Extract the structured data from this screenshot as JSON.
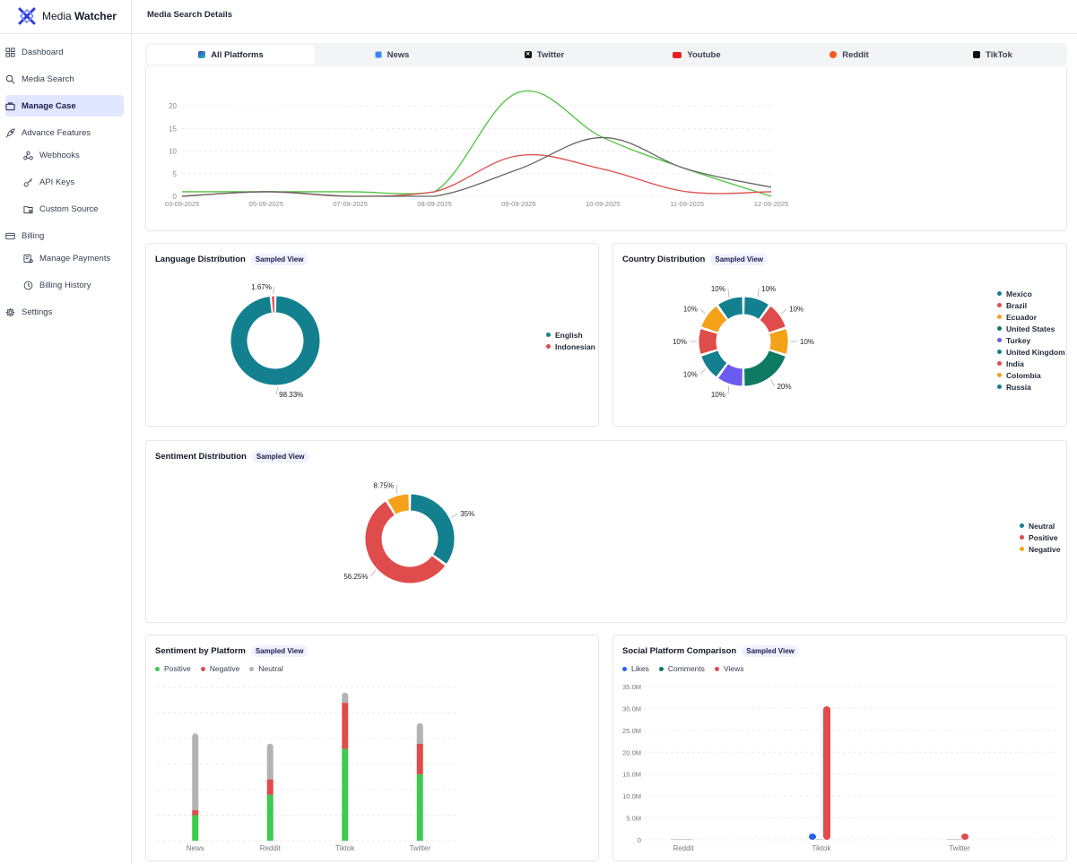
{
  "app": {
    "brand_regular": "Media ",
    "brand_bold": "Watcher"
  },
  "header": {
    "title": "Media Search Details"
  },
  "sidebar": {
    "items": [
      {
        "label": "Dashboard",
        "icon": "grid-icon"
      },
      {
        "label": "Media Search",
        "icon": "search-icon"
      },
      {
        "label": "Manage Case",
        "icon": "briefcase-icon"
      },
      {
        "label": "Advance Features",
        "icon": "rocket-icon"
      },
      {
        "label": "Webhooks",
        "icon": "webhook-icon"
      },
      {
        "label": "API Keys",
        "icon": "key-icon"
      },
      {
        "label": "Custom Source",
        "icon": "folder-icon"
      },
      {
        "label": "Billing",
        "icon": "credit-card-icon"
      },
      {
        "label": "Manage Payments",
        "icon": "payments-icon"
      },
      {
        "label": "Billing History",
        "icon": "clock-icon"
      },
      {
        "label": "Settings",
        "icon": "gear-icon"
      }
    ]
  },
  "tabs": [
    {
      "label": "All Platforms"
    },
    {
      "label": "News"
    },
    {
      "label": "Twitter"
    },
    {
      "label": "Youtube"
    },
    {
      "label": "Reddit"
    },
    {
      "label": "TikTok"
    }
  ],
  "colors": {
    "teal": "#13808f",
    "red": "#e04b4b",
    "orange": "#f4a21a",
    "purple": "#6b5cf0",
    "green": "#3ec94f",
    "gray": "#b4b4b4",
    "blue": "#2563eb",
    "dark_teal": "#0e7a62"
  },
  "timeline": {
    "chart_data": {
      "type": "line",
      "categories": [
        "03-09-2025",
        "05-09-2025",
        "07-09-2025",
        "08-09-2025",
        "09-09-2025",
        "10-09-2025",
        "11-09-2025",
        "12-09-2025"
      ],
      "y_ticks": [
        "0",
        "5",
        "10",
        "15",
        "20"
      ],
      "ylim": [
        0,
        23
      ],
      "series": [
        {
          "name": "green",
          "color": "#4cc43c",
          "values": [
            1,
            1,
            1,
            1,
            23,
            13,
            6,
            0
          ]
        },
        {
          "name": "red",
          "color": "#e04b4b",
          "values": [
            0,
            1,
            0,
            1,
            9,
            6,
            1,
            1
          ]
        },
        {
          "name": "gray",
          "color": "#666666",
          "values": [
            0,
            1,
            0,
            0,
            6,
            13,
            6,
            2
          ]
        }
      ]
    }
  },
  "language": {
    "title": "Language Distribution",
    "badge": "Sampled View",
    "chart_data": {
      "type": "pie",
      "labels": [
        "English",
        "Indonesian"
      ],
      "values": [
        98.33,
        1.67
      ],
      "value_labels": [
        "98.33%",
        "1.67%"
      ],
      "colors": [
        "#13808f",
        "#e04b4b"
      ]
    }
  },
  "country": {
    "title": "Country Distribution",
    "badge": "Sampled View",
    "chart_data": {
      "type": "pie",
      "labels": [
        "Mexico",
        "Brazil",
        "Ecuador",
        "United States",
        "Turkey",
        "United Kingdom",
        "India",
        "Colombia",
        "Russia"
      ],
      "values": [
        10,
        10,
        10,
        20,
        10,
        10,
        10,
        10,
        10
      ],
      "value_labels": [
        "10%",
        "10%",
        "10%",
        "20%",
        "10%",
        "10%",
        "10%",
        "10%",
        "10%"
      ],
      "colors": [
        "#13808f",
        "#e04b4b",
        "#f4a21a",
        "#0e7a62",
        "#6b5cf0",
        "#13808f",
        "#e04b4b",
        "#f4a21a",
        "#13808f"
      ]
    }
  },
  "sentiment": {
    "title": "Sentiment Distribution",
    "badge": "Sampled View",
    "chart_data": {
      "type": "pie",
      "labels": [
        "Neutral",
        "Positive",
        "Negative"
      ],
      "values": [
        35,
        56.25,
        8.75
      ],
      "value_labels": [
        "35%",
        "56.25%",
        "8.75%"
      ],
      "colors": [
        "#13808f",
        "#e04b4b",
        "#f4a21a"
      ]
    }
  },
  "sentiment_platform": {
    "title": "Sentiment by Platform",
    "badge": "Sampled View",
    "chart_data": {
      "type": "bar",
      "stacked": true,
      "categories": [
        "News",
        "Reddit",
        "Tiktok",
        "Twitter"
      ],
      "ylim": [
        0,
        30
      ],
      "series": [
        {
          "name": "Positive",
          "color": "#3ec94f",
          "values": [
            5,
            9,
            18,
            13
          ]
        },
        {
          "name": "Negative",
          "color": "#e04b4b",
          "values": [
            1,
            3,
            9,
            6
          ]
        },
        {
          "name": "Neutral",
          "color": "#b4b4b4",
          "values": [
            15,
            7,
            2,
            4
          ]
        }
      ]
    }
  },
  "social": {
    "title": "Social Platform Comparison",
    "badge": "Sampled View",
    "chart_data": {
      "type": "bar",
      "categories": [
        "Reddit",
        "Tiktok",
        "Twitter"
      ],
      "y_ticks": [
        "0",
        "5.0M",
        "10.0M",
        "15.0M",
        "20.0M",
        "25.0M",
        "30.0M",
        "35.0M"
      ],
      "ylim": [
        0,
        35
      ],
      "unit": "M",
      "series": [
        {
          "name": "Likes",
          "color": "#2563eb",
          "values": [
            0,
            0.3,
            0
          ]
        },
        {
          "name": "Comments",
          "color": "#0e7a62",
          "values": [
            0,
            0,
            0
          ]
        },
        {
          "name": "Views",
          "color": "#e04b4b",
          "values": [
            0,
            30.5,
            0.6
          ]
        }
      ]
    }
  }
}
